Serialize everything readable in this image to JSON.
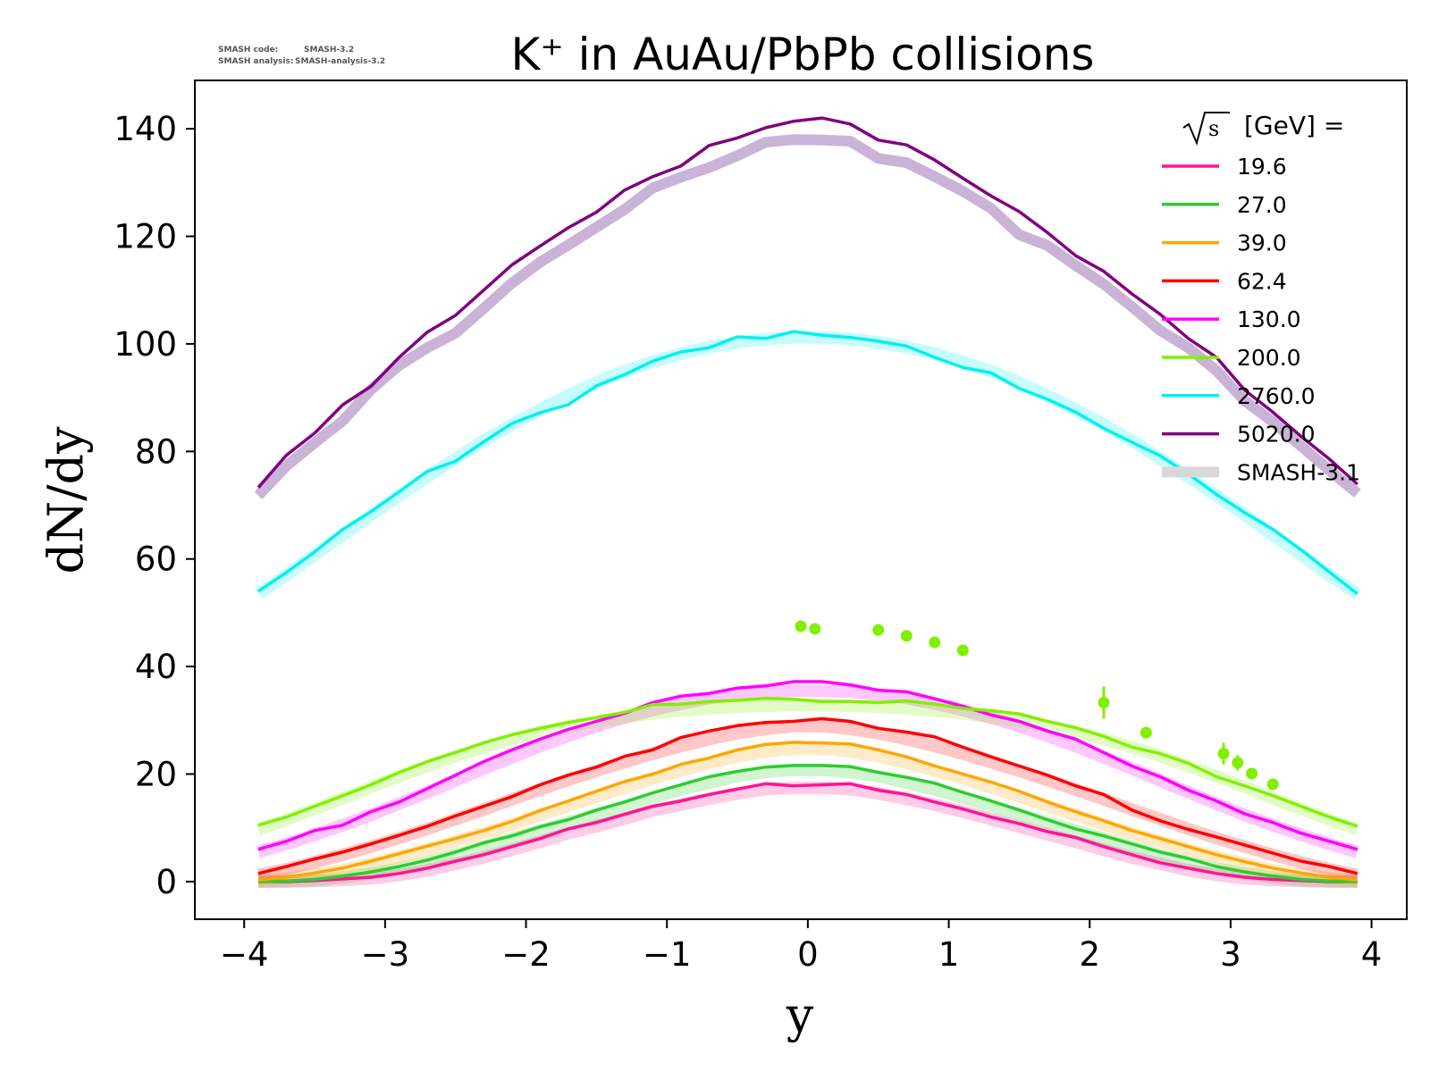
{
  "version_info": {
    "code_label": "SMASH code:",
    "code_value": "SMASH-3.2",
    "analysis_label": "SMASH analysis:",
    "analysis_value": "SMASH-analysis-3.2"
  },
  "chart_data": {
    "type": "line",
    "title": "K⁺ in AuAu/PbPb collisions",
    "xlabel": "y",
    "ylabel": "dN/dy",
    "xlim": [
      -4.35,
      4.25
    ],
    "ylim": [
      -7,
      149
    ],
    "xticks": [
      -4,
      -3,
      -2,
      -1,
      0,
      1,
      2,
      3,
      4
    ],
    "xtick_labels": [
      "−4",
      "−3",
      "−2",
      "−1",
      "0",
      "1",
      "2",
      "3",
      "4"
    ],
    "yticks": [
      0,
      20,
      40,
      60,
      80,
      100,
      120,
      140
    ],
    "ytick_labels": [
      "0",
      "20",
      "40",
      "60",
      "80",
      "100",
      "120",
      "140"
    ],
    "grid": false,
    "legend": {
      "placement": "top-right",
      "title_sqrt": "s",
      "title_suffix": "[GeV] =",
      "reference_label": "SMASH-3.1"
    },
    "x": [
      -3.9,
      -3.7,
      -3.5,
      -3.3,
      -3.1,
      -2.9,
      -2.7,
      -2.5,
      -2.3,
      -2.1,
      -1.9,
      -1.7,
      -1.5,
      -1.3,
      -1.1,
      -0.9,
      -0.7,
      -0.5,
      -0.3,
      -0.1,
      0.1,
      0.3,
      0.5,
      0.7,
      0.9,
      1.1,
      1.3,
      1.5,
      1.7,
      1.9,
      2.1,
      2.3,
      2.5,
      2.7,
      2.9,
      3.1,
      3.3,
      3.5,
      3.7,
      3.9
    ],
    "series": [
      {
        "name": "19.6",
        "color": "#ff1493",
        "values": [
          0.0,
          0.0,
          0.2,
          0.5,
          0.8,
          1.5,
          2.5,
          3.8,
          5.0,
          6.5,
          8.0,
          9.8,
          11.0,
          12.5,
          14.0,
          15.0,
          16.2,
          17.2,
          18.2,
          17.8,
          18.0,
          18.2,
          17.0,
          16.2,
          14.8,
          13.5,
          12.0,
          10.8,
          9.3,
          8.2,
          6.5,
          5.0,
          3.5,
          2.5,
          1.5,
          0.8,
          0.4,
          0.2,
          0.0,
          0.0
        ],
        "ref_values": [
          0.0,
          0.0,
          0.1,
          0.3,
          0.6,
          1.2,
          2.1,
          3.3,
          4.5,
          5.9,
          7.4,
          9.0,
          10.3,
          11.7,
          13.2,
          14.3,
          15.4,
          16.4,
          17.2,
          17.4,
          17.4,
          17.2,
          16.4,
          15.4,
          14.3,
          13.0,
          11.6,
          10.2,
          8.8,
          7.4,
          5.9,
          4.5,
          3.3,
          2.1,
          1.2,
          0.6,
          0.3,
          0.1,
          0.0,
          0.0
        ]
      },
      {
        "name": "27.0",
        "color": "#2ecc2e",
        "values": [
          0.0,
          0.1,
          0.4,
          1.0,
          1.8,
          2.8,
          4.0,
          5.5,
          7.2,
          8.5,
          10.2,
          11.5,
          13.3,
          14.8,
          16.5,
          18.0,
          19.5,
          20.5,
          21.3,
          21.6,
          21.6,
          21.4,
          20.3,
          19.4,
          18.3,
          16.6,
          15.0,
          13.3,
          11.5,
          9.8,
          8.5,
          7.0,
          5.5,
          4.3,
          2.8,
          1.8,
          1.0,
          0.4,
          0.1,
          0.0
        ],
        "ref_values": [
          0.0,
          0.1,
          0.3,
          0.8,
          1.5,
          2.4,
          3.6,
          5.0,
          6.5,
          8.0,
          9.5,
          11.0,
          12.5,
          14.0,
          15.6,
          17.1,
          18.4,
          19.6,
          20.4,
          20.8,
          20.8,
          20.4,
          19.6,
          18.4,
          17.1,
          15.6,
          14.0,
          12.5,
          11.0,
          9.5,
          8.0,
          6.5,
          5.0,
          3.6,
          2.4,
          1.5,
          0.8,
          0.3,
          0.1,
          0.0
        ]
      },
      {
        "name": "39.0",
        "color": "#ffa500",
        "values": [
          0.3,
          0.8,
          1.6,
          2.5,
          3.8,
          5.2,
          6.6,
          8.0,
          9.5,
          11.2,
          13.2,
          15.0,
          16.8,
          18.6,
          20.0,
          21.8,
          23.0,
          24.5,
          25.5,
          25.9,
          25.8,
          25.6,
          24.5,
          23.2,
          21.5,
          20.0,
          18.5,
          16.8,
          14.8,
          13.0,
          11.3,
          9.5,
          8.0,
          6.5,
          5.0,
          3.7,
          2.5,
          1.6,
          0.8,
          0.3
        ],
        "ref_values": [
          0.2,
          0.6,
          1.3,
          2.1,
          3.3,
          4.6,
          6.0,
          7.5,
          9.0,
          10.6,
          12.4,
          14.1,
          15.8,
          17.5,
          19.2,
          20.7,
          22.1,
          23.3,
          24.2,
          24.7,
          24.7,
          24.2,
          23.3,
          22.1,
          20.7,
          19.2,
          17.5,
          15.8,
          14.1,
          12.4,
          10.6,
          9.0,
          7.5,
          6.0,
          4.6,
          3.3,
          2.1,
          1.3,
          0.6,
          0.2
        ]
      },
      {
        "name": "62.4",
        "color": "#ff0000",
        "values": [
          1.5,
          2.8,
          4.2,
          5.5,
          7.0,
          8.6,
          10.3,
          12.2,
          14.0,
          15.8,
          18.0,
          19.8,
          21.3,
          23.3,
          24.5,
          26.8,
          28.0,
          29.0,
          29.6,
          29.8,
          30.3,
          29.8,
          28.5,
          27.8,
          26.9,
          25.0,
          23.2,
          21.5,
          19.8,
          17.8,
          16.2,
          13.3,
          11.3,
          9.7,
          8.3,
          6.8,
          5.3,
          3.8,
          2.8,
          1.5
        ],
        "ref_values": [
          1.2,
          2.3,
          3.6,
          5.0,
          6.5,
          8.1,
          9.8,
          11.6,
          13.4,
          15.3,
          17.1,
          18.9,
          20.6,
          22.2,
          23.8,
          25.2,
          26.5,
          27.6,
          28.4,
          28.9,
          28.9,
          28.4,
          27.6,
          26.5,
          25.2,
          23.8,
          22.2,
          20.6,
          18.9,
          17.1,
          15.3,
          13.4,
          11.6,
          9.8,
          8.1,
          6.5,
          5.0,
          3.6,
          2.3,
          1.2
        ]
      },
      {
        "name": "130.0",
        "color": "#ff00ff",
        "values": [
          6.0,
          7.5,
          9.5,
          10.5,
          13.0,
          14.8,
          17.3,
          19.8,
          22.3,
          24.5,
          26.5,
          28.3,
          29.8,
          31.3,
          33.3,
          34.5,
          35.0,
          36.0,
          36.4,
          37.2,
          37.2,
          36.6,
          35.6,
          35.3,
          34.0,
          32.6,
          31.0,
          29.8,
          28.0,
          26.5,
          24.0,
          21.5,
          19.5,
          17.0,
          15.0,
          12.6,
          11.0,
          9.0,
          7.5,
          6.0
        ],
        "ref_values": [
          5.5,
          7.0,
          8.7,
          10.5,
          12.4,
          14.5,
          16.6,
          18.8,
          21.0,
          23.1,
          25.2,
          27.1,
          28.9,
          30.5,
          31.9,
          33.1,
          34.1,
          34.8,
          35.3,
          35.5,
          35.5,
          35.3,
          34.8,
          34.1,
          33.1,
          31.9,
          30.5,
          28.9,
          27.1,
          25.2,
          23.1,
          21.0,
          18.8,
          16.6,
          14.5,
          12.4,
          10.5,
          8.7,
          7.0,
          5.5
        ]
      },
      {
        "name": "200.0",
        "color": "#80f000",
        "values": [
          10.5,
          12.0,
          14.0,
          16.0,
          18.0,
          20.3,
          22.3,
          24.0,
          25.8,
          27.3,
          28.5,
          29.6,
          30.5,
          31.5,
          32.9,
          33.0,
          33.5,
          33.7,
          34.1,
          33.9,
          33.5,
          33.5,
          33.3,
          33.6,
          33.0,
          32.2,
          31.8,
          31.2,
          29.8,
          28.6,
          27.0,
          25.0,
          23.8,
          22.0,
          19.5,
          17.8,
          16.0,
          14.0,
          12.0,
          10.3
        ],
        "ref_values": [
          9.7,
          11.5,
          13.5,
          15.5,
          17.6,
          19.6,
          21.5,
          23.3,
          25.0,
          26.5,
          27.8,
          28.9,
          29.8,
          30.6,
          31.3,
          31.8,
          32.2,
          32.5,
          32.7,
          32.8,
          32.8,
          32.7,
          32.5,
          32.2,
          31.8,
          31.3,
          30.6,
          29.8,
          28.9,
          27.8,
          26.5,
          25.0,
          23.3,
          21.5,
          19.6,
          17.6,
          15.5,
          13.5,
          11.5,
          9.7
        ]
      },
      {
        "name": "2760.0",
        "color": "#00f0f0",
        "values": [
          54.0,
          57.5,
          61.3,
          65.5,
          68.8,
          72.5,
          76.3,
          78.2,
          81.8,
          85.2,
          87.2,
          88.7,
          92.2,
          94.3,
          96.8,
          98.5,
          99.3,
          101.3,
          101.0,
          102.3,
          101.6,
          101.2,
          100.5,
          99.6,
          97.5,
          95.6,
          94.6,
          91.7,
          89.7,
          87.3,
          84.3,
          81.7,
          79.2,
          75.8,
          72.0,
          68.6,
          65.5,
          61.7,
          57.6,
          53.5
        ],
        "ref_values": [
          53.5,
          57.0,
          60.8,
          64.5,
          68.2,
          71.8,
          75.3,
          78.7,
          82.0,
          85.0,
          87.8,
          90.4,
          92.8,
          94.9,
          96.7,
          98.2,
          99.4,
          100.3,
          100.9,
          101.2,
          101.2,
          100.9,
          100.3,
          99.4,
          98.2,
          96.7,
          94.9,
          92.8,
          90.4,
          87.8,
          85.0,
          82.0,
          78.7,
          75.3,
          71.8,
          68.2,
          64.5,
          60.8,
          57.0,
          53.5
        ]
      },
      {
        "name": "5020.0",
        "color": "#800080",
        "values": [
          73.3,
          79.3,
          83.4,
          88.7,
          92.1,
          97.5,
          102.2,
          105.3,
          110.0,
          114.7,
          118.2,
          121.6,
          124.5,
          128.6,
          131.1,
          133.1,
          136.9,
          138.3,
          140.2,
          141.4,
          142.0,
          140.9,
          137.9,
          137.0,
          134.2,
          130.8,
          127.5,
          124.6,
          120.7,
          116.4,
          113.5,
          109.3,
          105.5,
          101.0,
          97.5,
          91.4,
          87.3,
          82.8,
          78.6,
          73.9
        ],
        "ref_values": [
          71.8,
          77.3,
          81.6,
          85.7,
          91.5,
          96.0,
          99.3,
          102.0,
          106.6,
          111.3,
          115.2,
          118.4,
          121.7,
          125.0,
          129.0,
          131.0,
          132.8,
          135.0,
          137.5,
          138.0,
          137.9,
          137.7,
          134.5,
          133.7,
          131.1,
          128.4,
          125.2,
          120.3,
          118.3,
          114.6,
          111.1,
          106.9,
          102.5,
          99.3,
          95.0,
          89.4,
          85.5,
          81.0,
          76.5,
          72.2
        ]
      }
    ],
    "reference_color": "#d8d8d8",
    "experimental_points": {
      "color": "#80f000",
      "points": [
        {
          "x": -0.05,
          "y": 47.5,
          "err": 0.7
        },
        {
          "x": 0.05,
          "y": 47.0,
          "err": 0.9
        },
        {
          "x": 0.5,
          "y": 46.8,
          "err": 0.6
        },
        {
          "x": 0.7,
          "y": 45.7,
          "err": 0.6
        },
        {
          "x": 0.9,
          "y": 44.5,
          "err": 0.6
        },
        {
          "x": 1.1,
          "y": 43.0,
          "err": 0.6
        },
        {
          "x": 2.1,
          "y": 33.3,
          "err": 3.0
        },
        {
          "x": 2.4,
          "y": 27.7,
          "err": 0.9
        },
        {
          "x": 2.95,
          "y": 23.8,
          "err": 2.0
        },
        {
          "x": 3.05,
          "y": 22.1,
          "err": 1.4
        },
        {
          "x": 3.15,
          "y": 20.1,
          "err": 0.8
        },
        {
          "x": 3.3,
          "y": 18.1,
          "err": 0.8
        }
      ]
    }
  }
}
